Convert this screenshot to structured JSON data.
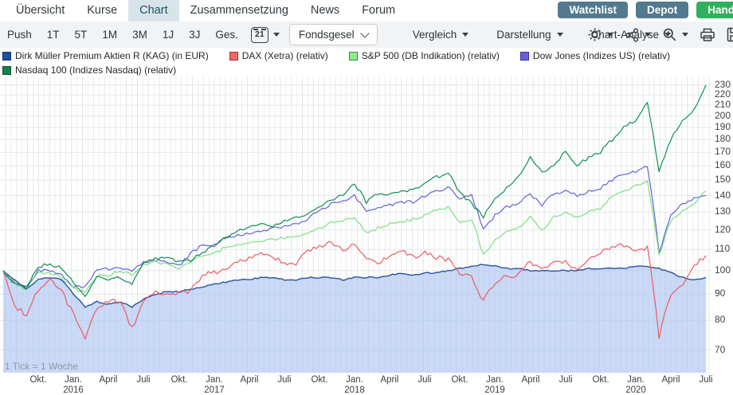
{
  "nav": {
    "tabs": [
      {
        "label": "Übersicht",
        "active": false
      },
      {
        "label": "Kurse",
        "active": false
      },
      {
        "label": "Chart",
        "active": true
      },
      {
        "label": "Zusammensetzung",
        "active": false
      },
      {
        "label": "News",
        "active": false
      },
      {
        "label": "Forum",
        "active": false
      }
    ],
    "action_buttons": [
      {
        "label": "Watchlist",
        "color": "#53798e"
      },
      {
        "label": "Depot",
        "color": "#53798e"
      },
      {
        "label": "Hand",
        "color": "#2fb05e"
      }
    ]
  },
  "toolbar": {
    "range_buttons": [
      "Push",
      "1T",
      "5T",
      "1M",
      "3M",
      "1J",
      "3J",
      "Ges."
    ],
    "calendar_day": "21",
    "select_label": "Fondsgesel",
    "menus": [
      "Vergleich",
      "Darstellung",
      "Chart-Analyse"
    ],
    "icon_buttons": [
      {
        "name": "settings-gear-icon",
        "caret": true
      },
      {
        "name": "indicator-nodes-icon",
        "caret": true
      },
      {
        "name": "zoom-in-icon",
        "caret": true
      },
      {
        "name": "print-icon",
        "caret": false
      },
      {
        "name": "save-icon",
        "caret": false
      }
    ]
  },
  "legend": {
    "rows": [
      [
        {
          "label": "Dirk Müller Premium Aktien R (KAG) (in EUR)",
          "swatch": "#1d4fa3",
          "border": "#12386f"
        },
        {
          "label": "DAX (Xetra) (relativ)",
          "swatch": "#ef6a6a",
          "border": "#a03030"
        },
        {
          "label": "S&P 500 (DB Indikation) (relativ)",
          "swatch": "#8ded8d",
          "border": "#2f8f3f"
        },
        {
          "label": "Dow Jones (Indizes US) (relativ)",
          "swatch": "#6a5fd8",
          "border": "#3a30a0"
        }
      ],
      [
        {
          "label": "Nasdaq 100 (Indizes Nasdaq) (relativ)",
          "swatch": "#12814d",
          "border": "#08502e"
        }
      ]
    ]
  },
  "chart_data": {
    "type": "line",
    "y_scale": "log",
    "y_ticks": [
      70,
      80,
      90,
      100,
      110,
      120,
      130,
      140,
      150,
      160,
      170,
      180,
      190,
      200,
      210,
      220,
      230
    ],
    "y_range": [
      64,
      239
    ],
    "x_note": "1 Tick = 1 Woche",
    "x_unit": "months, Jul 2015 – Jul 2020, 1 value per month",
    "x_tick_labels": [
      {
        "pos": 3,
        "label": "Okt."
      },
      {
        "pos": 6,
        "label": "Jan.",
        "year": "2016"
      },
      {
        "pos": 9,
        "label": "April"
      },
      {
        "pos": 12,
        "label": "Juli"
      },
      {
        "pos": 15,
        "label": "Okt."
      },
      {
        "pos": 18,
        "label": "Jan.",
        "year": "2017"
      },
      {
        "pos": 21,
        "label": "April"
      },
      {
        "pos": 24,
        "label": "Juli"
      },
      {
        "pos": 27,
        "label": "Okt."
      },
      {
        "pos": 30,
        "label": "Jan.",
        "year": "2018"
      },
      {
        "pos": 33,
        "label": "April"
      },
      {
        "pos": 36,
        "label": "Juli"
      },
      {
        "pos": 39,
        "label": "Okt."
      },
      {
        "pos": 42,
        "label": "Jan.",
        "year": "2019"
      },
      {
        "pos": 45,
        "label": "April"
      },
      {
        "pos": 48,
        "label": "Juli"
      },
      {
        "pos": 51,
        "label": "Okt."
      },
      {
        "pos": 54,
        "label": "Jan.",
        "year": "2020"
      },
      {
        "pos": 57,
        "label": "April"
      },
      {
        "pos": 60,
        "label": "Juli"
      }
    ],
    "series": [
      {
        "name": "Dirk Müller Premium Aktien R (KAG) (in EUR)",
        "color": "#2a52a2",
        "fill": "#adc6f2",
        "area": true,
        "values": [
          100,
          96,
          92,
          96,
          97,
          96,
          90,
          85,
          87,
          86,
          87,
          85,
          88,
          90,
          91,
          91,
          92,
          93,
          94,
          95,
          96,
          96,
          97,
          97,
          96,
          96,
          97,
          97,
          97,
          96,
          97,
          97,
          97,
          98,
          99,
          98,
          99,
          99,
          100,
          101,
          102,
          103,
          102,
          101,
          101,
          100,
          100,
          100,
          100,
          100,
          101,
          101,
          101,
          101,
          102,
          102,
          101,
          99,
          97,
          96,
          97
        ]
      },
      {
        "name": "DAX (Xetra) (relativ)",
        "color": "#ef5a62",
        "area": false,
        "values": [
          100,
          85,
          82,
          92,
          96,
          91,
          82,
          74,
          85,
          87,
          87,
          77,
          87,
          91,
          90,
          91,
          91,
          98,
          99,
          101,
          104,
          106,
          108,
          106,
          104,
          103,
          109,
          112,
          113,
          110,
          113,
          106,
          103,
          107,
          110,
          106,
          109,
          106,
          105,
          98,
          97,
          87,
          95,
          98,
          98,
          104,
          100,
          105,
          104,
          100,
          105,
          108,
          112,
          112,
          110,
          111,
          74,
          90,
          94,
          103,
          107
        ]
      },
      {
        "name": "Dow Jones (Indizes US) (relativ)",
        "color": "#6660d9",
        "area": false,
        "values": [
          100,
          94,
          93,
          100,
          100,
          98,
          93,
          93,
          100,
          101,
          101,
          100,
          104,
          105,
          104,
          102,
          108,
          112,
          112,
          116,
          117,
          118,
          119,
          121,
          122,
          123,
          126,
          131,
          135,
          137,
          140,
          130,
          133,
          134,
          136,
          136,
          140,
          143,
          145,
          138,
          140,
          120,
          128,
          133,
          135,
          141,
          134,
          141,
          143,
          140,
          143,
          145,
          150,
          154,
          156,
          160,
          108,
          128,
          135,
          138,
          140
        ]
      },
      {
        "name": "S&P 500 (DB Indikation) (relativ)",
        "color": "#7ce080",
        "area": false,
        "values": [
          100,
          94,
          92,
          99,
          99,
          97,
          92,
          91,
          98,
          98,
          100,
          98,
          103,
          104,
          103,
          101,
          104,
          107,
          108,
          111,
          112,
          113,
          114,
          115,
          116,
          116,
          119,
          121,
          124,
          125,
          127,
          118,
          121,
          123,
          124,
          126,
          128,
          131,
          133,
          124,
          126,
          107,
          115,
          119,
          121,
          127,
          120,
          127,
          130,
          127,
          130,
          132,
          140,
          143,
          146,
          150,
          107,
          125,
          131,
          135,
          143
        ]
      },
      {
        "name": "Nasdaq 100 (Indizes Nasdaq) (relativ)",
        "color": "#0f8f50",
        "area": false,
        "values": [
          100,
          94,
          93,
          102,
          103,
          101,
          95,
          89,
          97,
          96,
          97,
          94,
          103,
          106,
          106,
          104,
          105,
          108,
          112,
          116,
          119,
          121,
          124,
          122,
          125,
          127,
          129,
          133,
          138,
          140,
          148,
          136,
          141,
          140,
          144,
          143,
          148,
          152,
          155,
          142,
          135,
          127,
          138,
          145,
          152,
          166,
          156,
          160,
          171,
          161,
          166,
          170,
          180,
          190,
          196,
          211,
          155,
          180,
          195,
          205,
          230
        ]
      }
    ]
  }
}
